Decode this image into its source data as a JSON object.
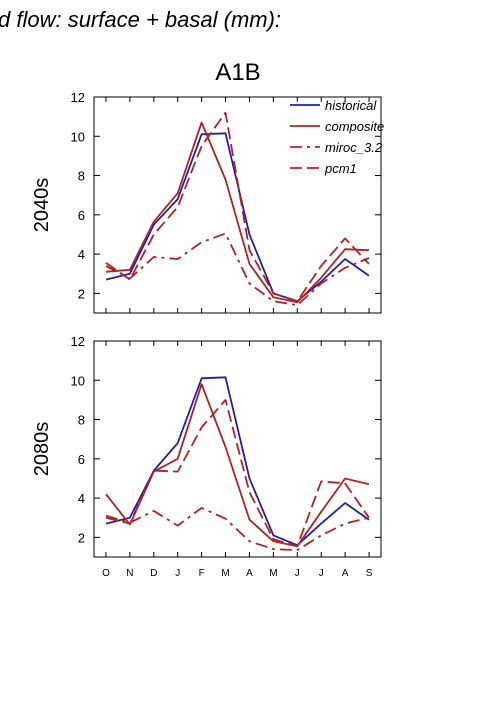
{
  "figure": {
    "header": "d flow: surface + basal (mm):",
    "title": "A1B"
  },
  "colors": {
    "historical": "#1f1fb4",
    "scenario": "#b22222",
    "axis": "#000000"
  },
  "chart_data": [
    {
      "type": "line",
      "panel_label": "2040s",
      "categories": [
        "O",
        "N",
        "D",
        "J",
        "F",
        "M",
        "A",
        "M",
        "J",
        "J",
        "A",
        "S"
      ],
      "ylim": [
        1,
        12
      ],
      "yticks": [
        2,
        4,
        6,
        8,
        10,
        12
      ],
      "legend": {
        "placement": "top-right",
        "entries": [
          "historical",
          "composite",
          "miroc_3.2",
          "pcm1"
        ]
      },
      "series": [
        {
          "name": "historical",
          "style": "solid",
          "color": "#1f1fb4",
          "values": [
            2.7,
            3.0,
            5.5,
            6.8,
            10.1,
            10.15,
            5.0,
            2.0,
            1.6,
            2.6,
            3.75,
            2.9
          ]
        },
        {
          "name": "composite",
          "style": "solid",
          "color": "#b22222",
          "values": [
            3.1,
            3.2,
            5.65,
            7.1,
            10.7,
            7.8,
            3.5,
            1.8,
            1.55,
            2.8,
            4.25,
            4.2
          ]
        },
        {
          "name": "miroc_3.2",
          "style": "dashdot",
          "color": "#b22222",
          "values": [
            3.4,
            2.75,
            3.85,
            3.75,
            4.6,
            5.05,
            2.5,
            1.6,
            1.4,
            2.5,
            3.3,
            3.8
          ]
        },
        {
          "name": "pcm1",
          "style": "dash",
          "color": "#b22222",
          "values": [
            3.55,
            2.7,
            5.0,
            6.4,
            9.5,
            11.2,
            4.2,
            2.0,
            1.6,
            3.4,
            4.8,
            3.5
          ]
        }
      ]
    },
    {
      "type": "line",
      "panel_label": "2080s",
      "categories": [
        "O",
        "N",
        "D",
        "J",
        "F",
        "M",
        "A",
        "M",
        "J",
        "J",
        "A",
        "S"
      ],
      "ylim": [
        1,
        12
      ],
      "yticks": [
        2,
        4,
        6,
        8,
        10,
        12
      ],
      "series": [
        {
          "name": "historical",
          "style": "solid",
          "color": "#1f1fb4",
          "values": [
            2.7,
            3.0,
            5.4,
            6.8,
            10.1,
            10.15,
            5.0,
            2.1,
            1.6,
            2.7,
            3.75,
            2.9
          ]
        },
        {
          "name": "composite",
          "style": "solid",
          "color": "#b22222",
          "values": [
            4.2,
            2.65,
            5.35,
            6.0,
            9.8,
            6.6,
            2.9,
            1.8,
            1.55,
            3.3,
            5.0,
            4.7
          ]
        },
        {
          "name": "miroc_3.2",
          "style": "dashdot",
          "color": "#b22222",
          "values": [
            3.1,
            2.75,
            3.35,
            2.6,
            3.5,
            2.95,
            1.8,
            1.4,
            1.35,
            2.1,
            2.7,
            3.0
          ]
        },
        {
          "name": "pcm1",
          "style": "dash",
          "color": "#b22222",
          "values": [
            3.0,
            2.7,
            5.4,
            5.35,
            7.6,
            9.0,
            4.3,
            1.9,
            1.55,
            4.85,
            4.75,
            3.0
          ]
        }
      ]
    }
  ]
}
